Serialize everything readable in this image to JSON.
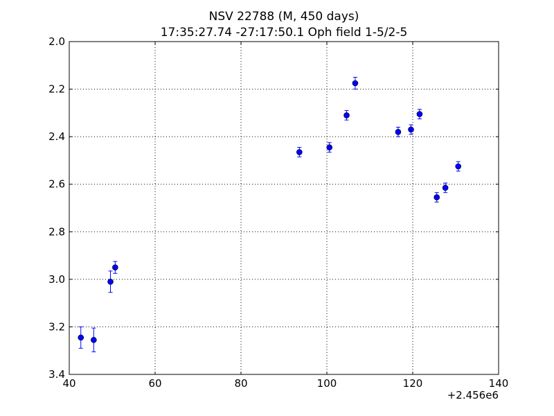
{
  "chart_data": {
    "type": "scatter",
    "title": "NSV 22788 (M, 450 days)",
    "subtitle": "17:35:27.74 -27:17:50.1 Oph field 1-5/2-5",
    "xlabel": "",
    "ylabel": "",
    "x_offset_label": "+2.456e6",
    "xlim": [
      40,
      140
    ],
    "ylim": [
      3.4,
      2.0
    ],
    "y_inverted": true,
    "grid": true,
    "grid_style": "dotted",
    "marker_color": "#0000ff",
    "x_ticks": [
      "40",
      "60",
      "80",
      "100",
      "120",
      "140"
    ],
    "y_ticks": [
      "2.0",
      "2.2",
      "2.4",
      "2.6",
      "2.8",
      "3.0",
      "3.2",
      "3.4"
    ],
    "series": [
      {
        "points": [
          {
            "x": 42.7,
            "y": 3.245,
            "err": 0.045
          },
          {
            "x": 45.7,
            "y": 3.255,
            "err": 0.05
          },
          {
            "x": 49.6,
            "y": 3.01,
            "err": 0.045
          },
          {
            "x": 50.7,
            "y": 2.95,
            "err": 0.025
          },
          {
            "x": 93.6,
            "y": 2.465,
            "err": 0.02
          },
          {
            "x": 100.6,
            "y": 2.445,
            "err": 0.02
          },
          {
            "x": 104.6,
            "y": 2.31,
            "err": 0.02
          },
          {
            "x": 106.6,
            "y": 2.175,
            "err": 0.025
          },
          {
            "x": 116.6,
            "y": 2.38,
            "err": 0.02
          },
          {
            "x": 119.6,
            "y": 2.37,
            "err": 0.02
          },
          {
            "x": 121.6,
            "y": 2.305,
            "err": 0.02
          },
          {
            "x": 125.6,
            "y": 2.655,
            "err": 0.02
          },
          {
            "x": 127.6,
            "y": 2.615,
            "err": 0.02
          },
          {
            "x": 130.6,
            "y": 2.525,
            "err": 0.02
          }
        ]
      }
    ]
  }
}
